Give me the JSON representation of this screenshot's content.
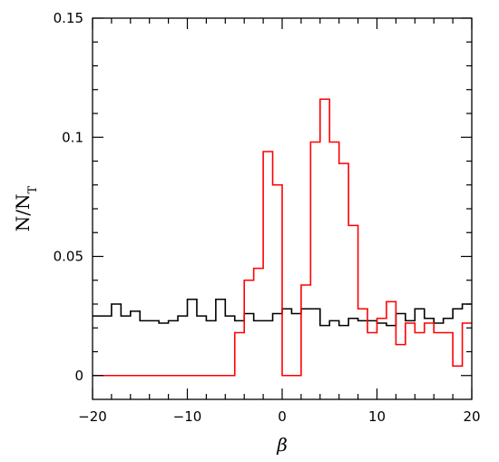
{
  "chart_data": {
    "type": "line",
    "style": "step-histogram",
    "xlabel": "β",
    "ylabel": "N/N",
    "ylabel_sub": "T",
    "xlim": [
      -20,
      20
    ],
    "ylim": [
      -0.01,
      0.15
    ],
    "x_ticks": [
      -20,
      -10,
      0,
      10,
      20
    ],
    "x_tick_labels": [
      "−20",
      "−10",
      "0",
      "10",
      "20"
    ],
    "y_ticks": [
      0,
      0.05,
      0.1,
      0.15
    ],
    "y_tick_labels": [
      "0",
      "0.05",
      "0.1",
      "0.15"
    ],
    "bin_edges": [
      -20,
      -19,
      -18,
      -17,
      -16,
      -15,
      -14,
      -13,
      -12,
      -11,
      -10,
      -9,
      -8,
      -7,
      -6,
      -5,
      -4,
      -3,
      -2,
      -1,
      0,
      1,
      2,
      3,
      4,
      5,
      6,
      7,
      8,
      9,
      10,
      11,
      12,
      13,
      14,
      15,
      16,
      17,
      18,
      19,
      20
    ],
    "series": [
      {
        "color": "#000000",
        "values": [
          0.025,
          0.025,
          0.03,
          0.025,
          0.027,
          0.023,
          0.023,
          0.022,
          0.023,
          0.025,
          0.032,
          0.025,
          0.023,
          0.032,
          0.025,
          0.023,
          0.026,
          0.023,
          0.023,
          0.026,
          0.028,
          0.026,
          0.028,
          0.028,
          0.021,
          0.023,
          0.021,
          0.024,
          0.023,
          0.023,
          0.022,
          0.021,
          0.026,
          0.023,
          0.028,
          0.024,
          0.022,
          0.024,
          0.028,
          0.03
        ]
      },
      {
        "color": "#ff0000",
        "values": [
          0,
          0,
          0,
          0,
          0,
          0,
          0,
          0,
          0,
          0,
          0,
          0,
          0,
          0,
          0,
          0.018,
          0.04,
          0.045,
          0.094,
          0.08,
          0,
          0,
          0.038,
          0.098,
          0.116,
          0.098,
          0.089,
          0.063,
          0.028,
          0.018,
          0.024,
          0.031,
          0.013,
          0.022,
          0.018,
          0.022,
          0.018,
          0.018,
          0.004,
          0.022
        ]
      }
    ]
  }
}
